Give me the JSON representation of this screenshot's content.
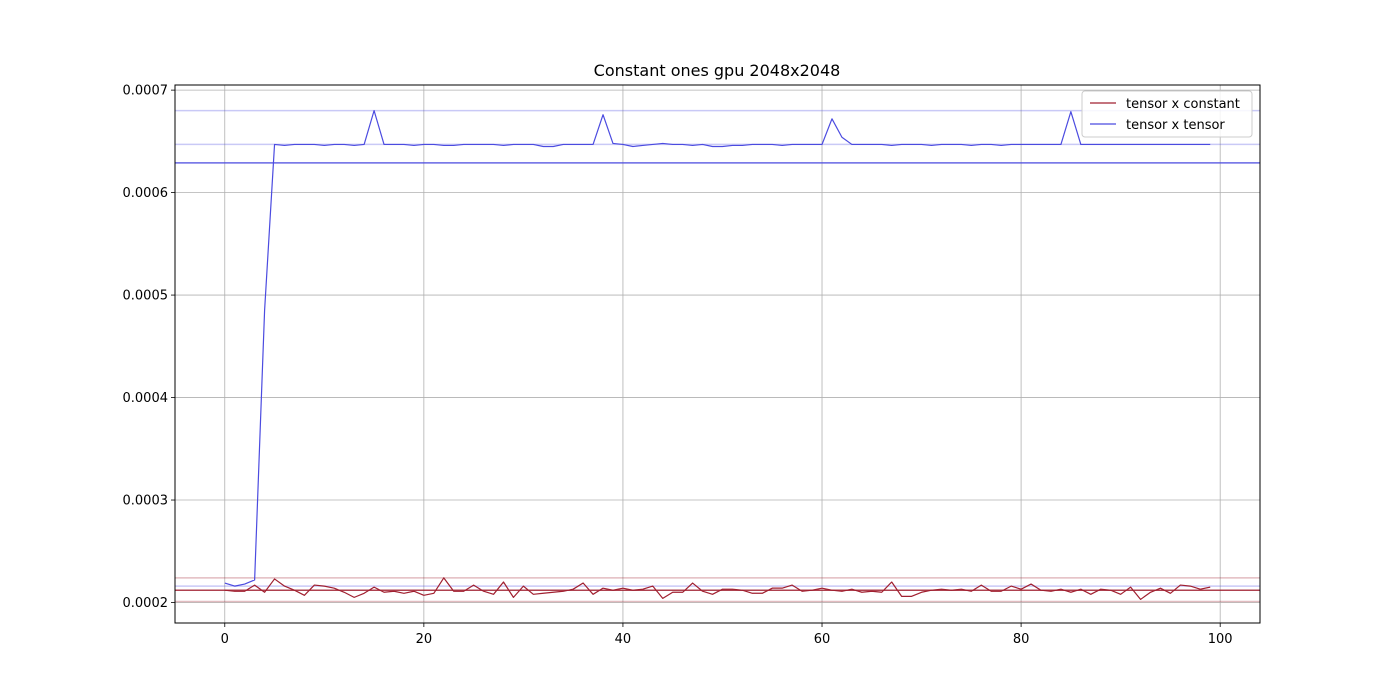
{
  "chart_data": {
    "type": "line",
    "title": "Constant ones gpu 2048x2048",
    "xlabel": "",
    "ylabel": "",
    "xlim": [
      -5,
      104
    ],
    "ylim": [
      0.00018,
      0.000705
    ],
    "xticks": [
      0,
      20,
      40,
      60,
      80,
      100
    ],
    "yticks": [
      0.0002,
      0.0003,
      0.0004,
      0.0005,
      0.0006,
      0.0007
    ],
    "ytick_labels": [
      "0.0002",
      "0.0003",
      "0.0004",
      "0.0005",
      "0.0006",
      "0.0007"
    ],
    "grid": true,
    "legend_position": "top-right",
    "series": [
      {
        "name": "tensor x constant",
        "color": "#a02030",
        "x": [
          0,
          1,
          2,
          3,
          4,
          5,
          6,
          7,
          8,
          9,
          10,
          11,
          12,
          13,
          14,
          15,
          16,
          17,
          18,
          19,
          20,
          21,
          22,
          23,
          24,
          25,
          26,
          27,
          28,
          29,
          30,
          31,
          32,
          33,
          34,
          35,
          36,
          37,
          38,
          39,
          40,
          41,
          42,
          43,
          44,
          45,
          46,
          47,
          48,
          49,
          50,
          51,
          52,
          53,
          54,
          55,
          56,
          57,
          58,
          59,
          60,
          61,
          62,
          63,
          64,
          65,
          66,
          67,
          68,
          69,
          70,
          71,
          72,
          73,
          74,
          75,
          76,
          77,
          78,
          79,
          80,
          81,
          82,
          83,
          84,
          85,
          86,
          87,
          88,
          89,
          90,
          91,
          92,
          93,
          94,
          95,
          96,
          97,
          98,
          99
        ],
        "values": [
          0.000212,
          0.000211,
          0.000211,
          0.000217,
          0.00021,
          0.000223,
          0.000216,
          0.000212,
          0.000207,
          0.000217,
          0.000216,
          0.000214,
          0.00021,
          0.000205,
          0.000209,
          0.000215,
          0.00021,
          0.000211,
          0.000209,
          0.000211,
          0.000207,
          0.000209,
          0.000224,
          0.000211,
          0.000211,
          0.000217,
          0.000211,
          0.000208,
          0.00022,
          0.000205,
          0.000216,
          0.000208,
          0.000209,
          0.00021,
          0.000211,
          0.000213,
          0.000219,
          0.000208,
          0.000214,
          0.000212,
          0.000214,
          0.000212,
          0.000213,
          0.000216,
          0.000204,
          0.00021,
          0.00021,
          0.000219,
          0.000211,
          0.000208,
          0.000213,
          0.000213,
          0.000212,
          0.000209,
          0.000209,
          0.000214,
          0.000214,
          0.000217,
          0.000211,
          0.000212,
          0.000214,
          0.000212,
          0.000211,
          0.000213,
          0.00021,
          0.000211,
          0.00021,
          0.00022,
          0.000206,
          0.000206,
          0.00021,
          0.000212,
          0.000213,
          0.000212,
          0.000213,
          0.000211,
          0.000217,
          0.000211,
          0.000211,
          0.000216,
          0.000213,
          0.000218,
          0.000212,
          0.000211,
          0.000213,
          0.00021,
          0.000213,
          0.000208,
          0.000213,
          0.000212,
          0.000208,
          0.000215,
          0.000203,
          0.00021,
          0.000214,
          0.000209,
          0.000217,
          0.000216,
          0.000213,
          0.000215
        ]
      },
      {
        "name": "tensor x tensor",
        "color": "#4b4be0",
        "x": [
          0,
          1,
          2,
          3,
          4,
          5,
          6,
          7,
          8,
          9,
          10,
          11,
          12,
          13,
          14,
          15,
          16,
          17,
          18,
          19,
          20,
          21,
          22,
          23,
          24,
          25,
          26,
          27,
          28,
          29,
          30,
          31,
          32,
          33,
          34,
          35,
          36,
          37,
          38,
          39,
          40,
          41,
          42,
          43,
          44,
          45,
          46,
          47,
          48,
          49,
          50,
          51,
          52,
          53,
          54,
          55,
          56,
          57,
          58,
          59,
          60,
          61,
          62,
          63,
          64,
          65,
          66,
          67,
          68,
          69,
          70,
          71,
          72,
          73,
          74,
          75,
          76,
          77,
          78,
          79,
          80,
          81,
          82,
          83,
          84,
          85,
          86,
          87,
          88,
          89,
          90,
          91,
          92,
          93,
          94,
          95,
          96,
          97,
          98,
          99
        ],
        "values": [
          0.000219,
          0.000216,
          0.000218,
          0.000222,
          0.000485,
          0.000647,
          0.000646,
          0.000647,
          0.000647,
          0.000647,
          0.000646,
          0.000647,
          0.000647,
          0.000646,
          0.000647,
          0.00068,
          0.000647,
          0.000647,
          0.000647,
          0.000646,
          0.000647,
          0.000647,
          0.000646,
          0.000646,
          0.000647,
          0.000647,
          0.000647,
          0.000647,
          0.000646,
          0.000647,
          0.000647,
          0.000647,
          0.000645,
          0.000645,
          0.000647,
          0.000647,
          0.000647,
          0.000647,
          0.000676,
          0.000648,
          0.000647,
          0.000645,
          0.000646,
          0.000647,
          0.000648,
          0.000647,
          0.000647,
          0.000646,
          0.000647,
          0.000645,
          0.000645,
          0.000646,
          0.000646,
          0.000647,
          0.000647,
          0.000647,
          0.000646,
          0.000647,
          0.000647,
          0.000647,
          0.000647,
          0.000672,
          0.000654,
          0.000647,
          0.000647,
          0.000647,
          0.000647,
          0.000646,
          0.000647,
          0.000647,
          0.000647,
          0.000646,
          0.000647,
          0.000647,
          0.000647,
          0.000646,
          0.000647,
          0.000647,
          0.000646,
          0.000647,
          0.000647,
          0.000647,
          0.000647,
          0.000647,
          0.000647,
          0.000679,
          0.000647,
          0.000647,
          0.000647,
          0.000647,
          0.000647,
          0.000647,
          0.000647,
          0.000647,
          0.000647,
          0.000647,
          0.000647,
          0.000647,
          0.000647,
          0.000647
        ]
      }
    ],
    "reference_lines": [
      {
        "series": "tensor x constant",
        "y": 0.000212,
        "style": "solid"
      },
      {
        "series": "tensor x constant",
        "y": 0.000224,
        "style": "light"
      },
      {
        "series": "tensor x constant",
        "y": 0.000201,
        "style": "light"
      },
      {
        "series": "tensor x tensor",
        "y": 0.000629,
        "style": "solid"
      },
      {
        "series": "tensor x tensor",
        "y": 0.000647,
        "style": "light"
      },
      {
        "series": "tensor x tensor",
        "y": 0.00068,
        "style": "light"
      },
      {
        "series": "tensor x tensor",
        "y": 0.000216,
        "style": "light"
      }
    ]
  }
}
